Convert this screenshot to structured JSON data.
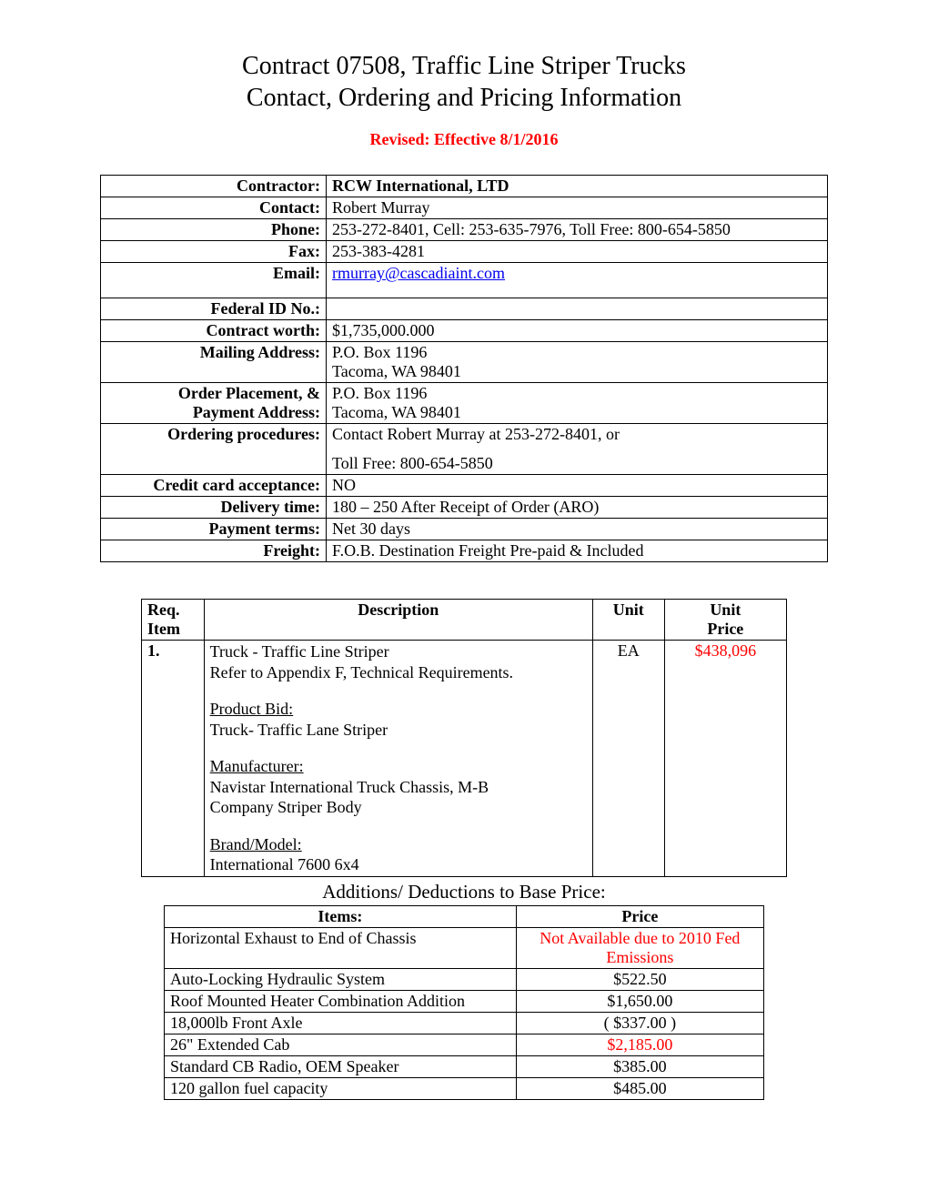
{
  "title_line1": "Contract 07508, Traffic Line Striper Trucks",
  "title_line2": "Contact, Ordering and Pricing Information",
  "revised": "Revised: Effective 8/1/2016",
  "info": {
    "contractor_label": "Contractor:",
    "contractor_value": "RCW International, LTD",
    "contact_label": "Contact:",
    "contact_value": "Robert Murray",
    "phone_label": "Phone:",
    "phone_value": "253-272-8401, Cell: 253-635-7976, Toll Free: 800-654-5850",
    "fax_label": "Fax:",
    "fax_value": "253-383-4281",
    "email_label": "Email:",
    "email_value": "rmurray@cascadiaint.com",
    "federal_label": "Federal ID No.:",
    "federal_value": "",
    "worth_label": "Contract worth:",
    "worth_value": "$1,735,000.000",
    "mailing_label": "Mailing Address:",
    "mailing_value_1": "P.O. Box 1196",
    "mailing_value_2": "Tacoma, WA 98401",
    "order_label_1": "Order Placement, &",
    "order_label_2": "Payment Address:",
    "order_value_1": "P.O. Box 1196",
    "order_value_2": "Tacoma, WA 98401",
    "ordering_label": "Ordering procedures:",
    "ordering_value_1": "Contact Robert Murray at 253-272-8401, or",
    "ordering_value_2": "Toll Free: 800-654-5850",
    "cc_label": "Credit card acceptance:",
    "cc_value": "NO",
    "delivery_label": "Delivery time:",
    "delivery_value": "180 – 250 After Receipt of Order (ARO)",
    "payment_label": "Payment terms:",
    "payment_value": "Net 30 days",
    "freight_label": "Freight:",
    "freight_value": "F.O.B. Destination Freight Pre-paid & Included"
  },
  "items": {
    "headers": {
      "req1": "Req.",
      "req2": "Item",
      "desc": "Description",
      "unit": "Unit",
      "price1": "Unit",
      "price2": "Price"
    },
    "row": {
      "num": "1.",
      "line1": "Truck  - Traffic Line Striper",
      "line2": "Refer to Appendix F, Technical Requirements.",
      "pb_label": "Product Bid:",
      "pb_value": "Truck- Traffic Lane Striper",
      "mfr_label": "Manufacturer:",
      "mfr_value1": "Navistar International Truck Chassis, M-B",
      "mfr_value2": "Company Striper Body",
      "brand_label": "Brand/Model:",
      "brand_value": "International 7600 6x4",
      "unit": "EA",
      "price": "$438,096"
    }
  },
  "subheading": "Additions/ Deductions to Base Price:",
  "adds": {
    "headers": {
      "item": "Items:",
      "price": "Price"
    },
    "rows": [
      {
        "item": "Horizontal Exhaust to End of Chassis",
        "price": "Not Available due to 2010 Fed Emissions",
        "red": true
      },
      {
        "item": "Auto-Locking Hydraulic System",
        "price": "$522.50",
        "red": false
      },
      {
        "item": "Roof Mounted Heater Combination Addition",
        "price": "$1,650.00",
        "red": false
      },
      {
        "item": "18,000lb Front Axle",
        "price": "( $337.00 )",
        "red": false
      },
      {
        "item": "26\" Extended Cab",
        "price": "$2,185.00",
        "red": true
      },
      {
        "item": "Standard CB Radio, OEM Speaker",
        "price": "$385.00",
        "red": false
      },
      {
        "item": "120 gallon fuel capacity",
        "price": "$485.00",
        "red": false
      }
    ]
  }
}
